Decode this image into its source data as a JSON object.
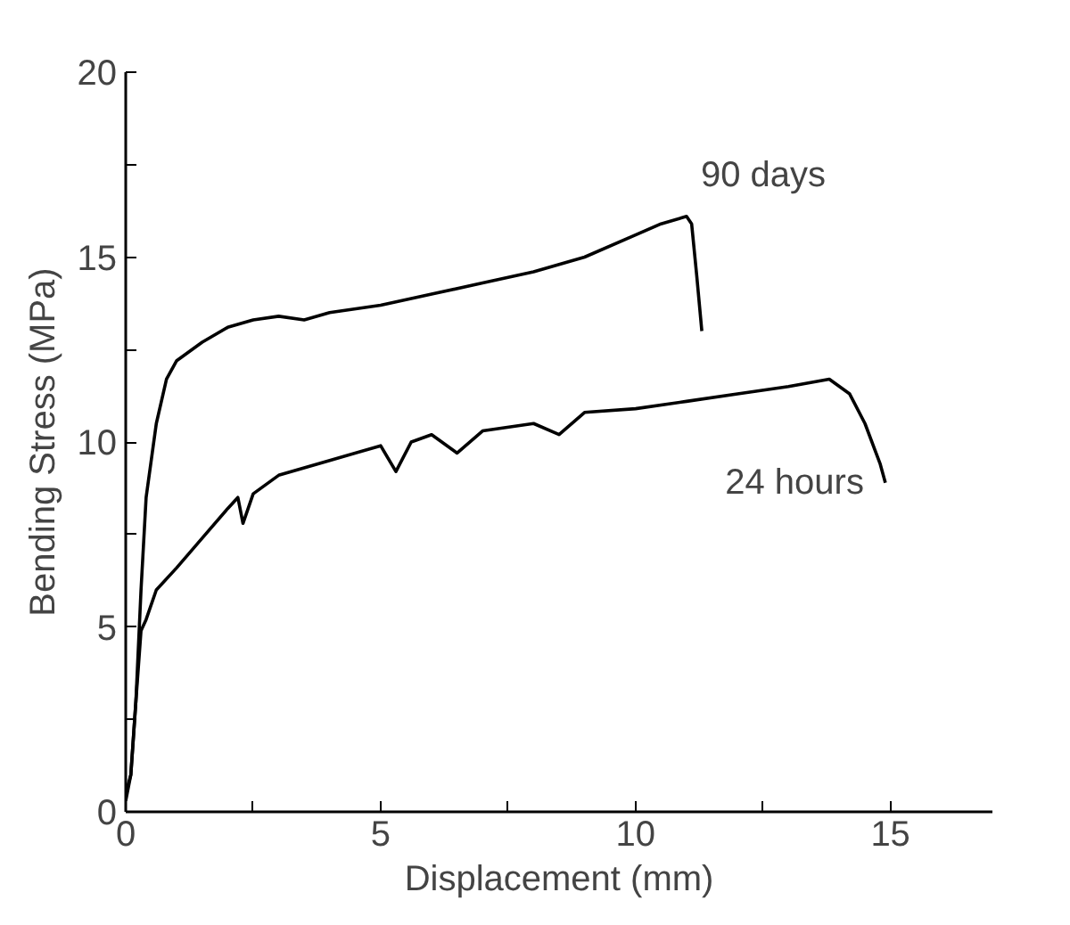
{
  "chart_data": {
    "type": "line",
    "xlabel": "Displacement (mm)",
    "ylabel": "Bending Stress (MPa)",
    "xlim": [
      0,
      17
    ],
    "ylim": [
      0,
      20
    ],
    "xticks": [
      0,
      {
        "value": 2.5,
        "label": null
      },
      5,
      {
        "value": 7.5,
        "label": null
      },
      10,
      {
        "value": 12.5,
        "label": null
      },
      15
    ],
    "yticks": [
      0,
      {
        "value": 2.5,
        "label": null
      },
      5,
      {
        "value": 7.5,
        "label": null
      },
      10,
      {
        "value": 12.5,
        "label": null
      },
      15,
      {
        "value": 17.5,
        "label": null
      },
      20
    ],
    "grid": false,
    "marker": "none",
    "line_style": "solid",
    "series": [
      {
        "name": "90 days",
        "color": "#000000",
        "x": [
          0,
          0.1,
          0.2,
          0.3,
          0.4,
          0.6,
          0.8,
          1,
          1.5,
          2,
          2.5,
          3,
          3.5,
          4,
          5,
          6,
          7,
          8,
          9,
          10,
          10.5,
          11,
          11.1,
          11.2,
          11.3
        ],
        "values": [
          0.5,
          1,
          3,
          6,
          8.5,
          10.5,
          11.7,
          12.2,
          12.7,
          13.1,
          13.3,
          13.4,
          13.3,
          13.5,
          13.7,
          14,
          14.3,
          14.6,
          15,
          15.6,
          15.9,
          16.1,
          15.9,
          14.5,
          13
        ]
      },
      {
        "name": "24 hours",
        "color": "#000000",
        "x": [
          0,
          0.1,
          0.2,
          0.3,
          0.4,
          0.6,
          1,
          1.5,
          2,
          2.2,
          2.3,
          2.5,
          3,
          4,
          5,
          5.3,
          5.6,
          6,
          6.5,
          7,
          8,
          8.5,
          9,
          10,
          11,
          12,
          13,
          13.8,
          14.2,
          14.5,
          14.8,
          14.9
        ],
        "values": [
          0.3,
          1,
          3,
          4.9,
          5.2,
          6,
          6.6,
          7.4,
          8.2,
          8.5,
          7.8,
          8.6,
          9.1,
          9.5,
          9.9,
          9.2,
          10,
          10.2,
          9.7,
          10.3,
          10.5,
          10.2,
          10.8,
          10.9,
          11.1,
          11.3,
          11.5,
          11.7,
          11.3,
          10.5,
          9.4,
          8.9
        ]
      }
    ]
  }
}
